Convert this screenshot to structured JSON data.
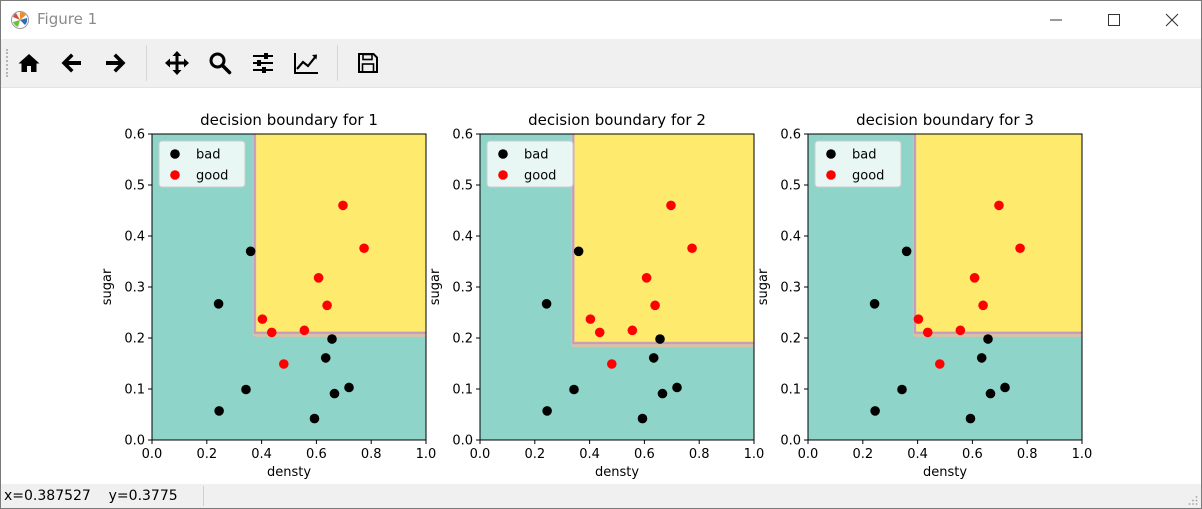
{
  "window": {
    "title": "Figure 1",
    "icons": [
      "matplotlib-logo-icon",
      "minimize-icon",
      "maximize-icon",
      "close-icon"
    ]
  },
  "toolbar": {
    "buttons": [
      {
        "name": "home-button",
        "icon": "home-icon"
      },
      {
        "name": "back-button",
        "icon": "arrow-left-icon"
      },
      {
        "name": "forward-button",
        "icon": "arrow-right-icon"
      },
      {
        "name": "pan-button",
        "icon": "move-icon"
      },
      {
        "name": "zoom-button",
        "icon": "magnifier-icon"
      },
      {
        "name": "configure-subplots-button",
        "icon": "sliders-icon"
      },
      {
        "name": "edit-axis-button",
        "icon": "line-chart-icon"
      },
      {
        "name": "save-button",
        "icon": "floppy-disk-icon"
      }
    ]
  },
  "status": {
    "x_label": "x=0.387527",
    "y_label": "y=0.3775"
  },
  "chart_data": [
    {
      "type": "scatter",
      "title": "decision boundary for 1",
      "xlabel": "densty",
      "ylabel": "sugar",
      "xlim": [
        0,
        1
      ],
      "ylim": [
        0,
        0.6
      ],
      "xticks": [
        "0.0",
        "0.2",
        "0.4",
        "0.6",
        "0.8",
        "1.0"
      ],
      "yticks": [
        "0.0",
        "0.1",
        "0.2",
        "0.3",
        "0.4",
        "0.5",
        "0.6"
      ],
      "regions": {
        "good_region": {
          "x_min": 0.375,
          "y_min": 0.21
        },
        "bad_color": "#8fd4c8",
        "good_color": "#feea6d",
        "boundary_color": "#c79bbf"
      },
      "legend": {
        "placement": "upper-left",
        "entries": [
          "bad",
          "good"
        ]
      },
      "series": [
        {
          "name": "bad",
          "color": "#000000",
          "points": [
            [
              0.243,
              0.267
            ],
            [
              0.245,
              0.057
            ],
            [
              0.343,
              0.099
            ],
            [
              0.36,
              0.37
            ],
            [
              0.593,
              0.042
            ],
            [
              0.634,
              0.161
            ],
            [
              0.657,
              0.198
            ],
            [
              0.666,
              0.091
            ],
            [
              0.719,
              0.103
            ]
          ]
        },
        {
          "name": "good",
          "color": "#ff0000",
          "points": [
            [
              0.403,
              0.237
            ],
            [
              0.437,
              0.211
            ],
            [
              0.481,
              0.149
            ],
            [
              0.556,
              0.215
            ],
            [
              0.608,
              0.318
            ],
            [
              0.639,
              0.264
            ],
            [
              0.697,
              0.46
            ],
            [
              0.774,
              0.376
            ]
          ]
        }
      ]
    },
    {
      "type": "scatter",
      "title": "decision boundary for 2",
      "xlabel": "densty",
      "ylabel": "sugar",
      "xlim": [
        0,
        1
      ],
      "ylim": [
        0,
        0.6
      ],
      "xticks": [
        "0.0",
        "0.2",
        "0.4",
        "0.6",
        "0.8",
        "1.0"
      ],
      "yticks": [
        "0.0",
        "0.1",
        "0.2",
        "0.3",
        "0.4",
        "0.5",
        "0.6"
      ],
      "regions": {
        "good_region": {
          "x_min": 0.34,
          "y_min": 0.19
        },
        "bad_color": "#8fd4c8",
        "good_color": "#feea6d",
        "boundary_color": "#c79bbf"
      },
      "legend": {
        "placement": "upper-left",
        "entries": [
          "bad",
          "good"
        ]
      },
      "series": [
        {
          "name": "bad",
          "color": "#000000",
          "points": [
            [
              0.243,
              0.267
            ],
            [
              0.245,
              0.057
            ],
            [
              0.343,
              0.099
            ],
            [
              0.36,
              0.37
            ],
            [
              0.593,
              0.042
            ],
            [
              0.634,
              0.161
            ],
            [
              0.657,
              0.198
            ],
            [
              0.666,
              0.091
            ],
            [
              0.719,
              0.103
            ]
          ]
        },
        {
          "name": "good",
          "color": "#ff0000",
          "points": [
            [
              0.403,
              0.237
            ],
            [
              0.437,
              0.211
            ],
            [
              0.481,
              0.149
            ],
            [
              0.556,
              0.215
            ],
            [
              0.608,
              0.318
            ],
            [
              0.639,
              0.264
            ],
            [
              0.697,
              0.46
            ],
            [
              0.774,
              0.376
            ]
          ]
        }
      ]
    },
    {
      "type": "scatter",
      "title": "decision boundary for 3",
      "xlabel": "densty",
      "ylabel": "sugar",
      "xlim": [
        0,
        1
      ],
      "ylim": [
        0,
        0.6
      ],
      "xticks": [
        "0.0",
        "0.2",
        "0.4",
        "0.6",
        "0.8",
        "1.0"
      ],
      "yticks": [
        "0.0",
        "0.1",
        "0.2",
        "0.3",
        "0.4",
        "0.5",
        "0.6"
      ],
      "regions": {
        "good_region": {
          "x_min": 0.39,
          "y_min": 0.21
        },
        "bad_color": "#8fd4c8",
        "good_color": "#feea6d",
        "boundary_color": "#c79bbf"
      },
      "legend": {
        "placement": "upper-left",
        "entries": [
          "bad",
          "good"
        ]
      },
      "series": [
        {
          "name": "bad",
          "color": "#000000",
          "points": [
            [
              0.243,
              0.267
            ],
            [
              0.245,
              0.057
            ],
            [
              0.343,
              0.099
            ],
            [
              0.36,
              0.37
            ],
            [
              0.593,
              0.042
            ],
            [
              0.634,
              0.161
            ],
            [
              0.657,
              0.198
            ],
            [
              0.666,
              0.091
            ],
            [
              0.719,
              0.103
            ]
          ]
        },
        {
          "name": "good",
          "color": "#ff0000",
          "points": [
            [
              0.403,
              0.237
            ],
            [
              0.437,
              0.211
            ],
            [
              0.481,
              0.149
            ],
            [
              0.556,
              0.215
            ],
            [
              0.608,
              0.318
            ],
            [
              0.639,
              0.264
            ],
            [
              0.697,
              0.46
            ],
            [
              0.774,
              0.376
            ]
          ]
        }
      ]
    }
  ]
}
